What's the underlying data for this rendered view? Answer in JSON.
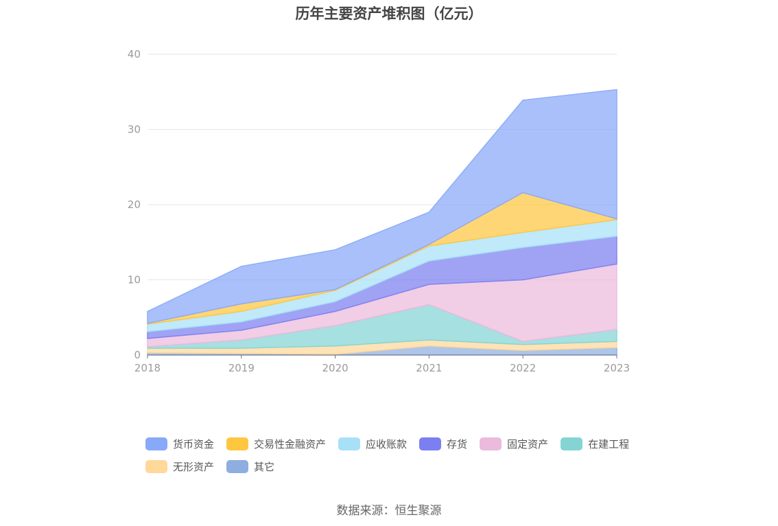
{
  "chart_data": {
    "type": "area",
    "title": "历年主要资产堆积图（亿元）",
    "x": [
      "2018",
      "2019",
      "2020",
      "2021",
      "2022",
      "2023"
    ],
    "y_ticks": [
      "0",
      "10",
      "20",
      "30",
      "40"
    ],
    "ylim": [
      0,
      40
    ],
    "stacked": true,
    "grid": true,
    "legend_position": "bottom",
    "series": [
      {
        "name": "其它",
        "color": "#8eaee0",
        "values": [
          0.3,
          0.2,
          0.1,
          1.2,
          0.6,
          1.0
        ]
      },
      {
        "name": "无形资产",
        "color": "#ffd89a",
        "values": [
          0.6,
          0.7,
          1.1,
          0.8,
          0.8,
          0.8
        ]
      },
      {
        "name": "在建工程",
        "color": "#84d4d4",
        "values": [
          0.2,
          1.1,
          2.7,
          4.7,
          0.4,
          1.6
        ]
      },
      {
        "name": "固定资产",
        "color": "#ebbadc",
        "values": [
          1.1,
          1.3,
          1.9,
          2.7,
          8.2,
          8.7
        ]
      },
      {
        "name": "存货",
        "color": "#7b7ff0",
        "values": [
          0.9,
          1.1,
          1.3,
          3.1,
          4.3,
          3.7
        ]
      },
      {
        "name": "应收账款",
        "color": "#a8e0f8",
        "values": [
          1.0,
          1.4,
          1.5,
          2.0,
          2.0,
          2.2
        ]
      },
      {
        "name": "交易性金融资产",
        "color": "#ffc640",
        "values": [
          0.1,
          1.0,
          0.1,
          0.2,
          5.3,
          0.1
        ]
      },
      {
        "name": "货币资金",
        "color": "#88a8f8",
        "values": [
          1.6,
          5.0,
          5.3,
          4.3,
          12.3,
          17.2
        ]
      }
    ],
    "legend_order": [
      "货币资金",
      "交易性金融资产",
      "应收账款",
      "存货",
      "固定资产",
      "在建工程",
      "无形资产",
      "其它"
    ]
  },
  "source_note": "数据来源：恒生聚源"
}
